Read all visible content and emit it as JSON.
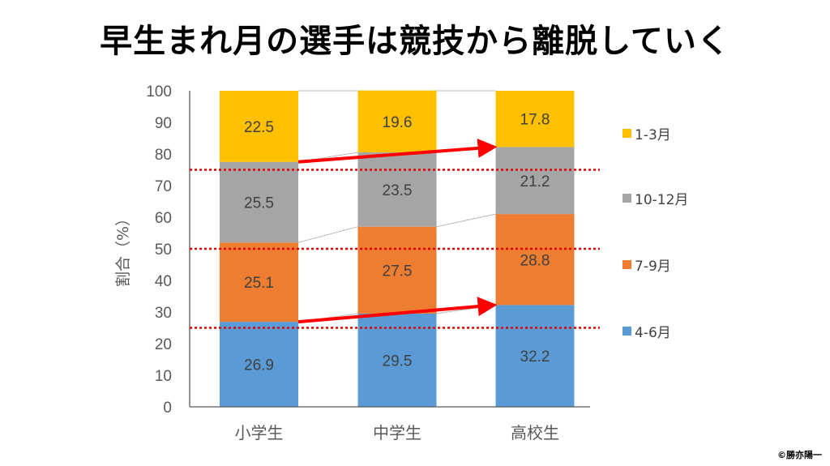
{
  "title": "早生まれ月の選手は競技から離脱していく",
  "copyright": "©勝亦陽一",
  "chart_data": {
    "type": "bar",
    "stacked": true,
    "title": "早生まれ月の選手は競技から離脱していく",
    "xlabel": "",
    "ylabel": "割合（%）",
    "ylim": [
      0,
      100
    ],
    "yticks": [
      0,
      10,
      20,
      30,
      40,
      50,
      60,
      70,
      80,
      90,
      100
    ],
    "categories": [
      "小学生",
      "中学生",
      "高校生"
    ],
    "series": [
      {
        "name": "4-6月",
        "color": "#5b9bd5",
        "values": [
          26.9,
          29.5,
          32.2
        ]
      },
      {
        "name": "7-9月",
        "color": "#ed7d31",
        "values": [
          25.1,
          27.5,
          28.8
        ]
      },
      {
        "name": "10-12月",
        "color": "#a5a5a5",
        "values": [
          25.5,
          23.5,
          21.2
        ]
      },
      {
        "name": "1-3月",
        "color": "#ffc000",
        "values": [
          22.5,
          19.6,
          17.8
        ]
      }
    ],
    "legend_order": [
      "1-3月",
      "10-12月",
      "7-9月",
      "4-6月"
    ],
    "legend_position": "right",
    "reference_lines": [
      75,
      50,
      25
    ],
    "reference_line_color": "#e00000",
    "arrows": [
      {
        "from_category": "小学生",
        "to_category": "高校生",
        "from_value": 77.5,
        "to_value": 82.2
      },
      {
        "from_category": "小学生",
        "to_category": "高校生",
        "from_value": 26.9,
        "to_value": 32.2
      }
    ],
    "arrow_color": "#ff0000",
    "grid": false
  }
}
